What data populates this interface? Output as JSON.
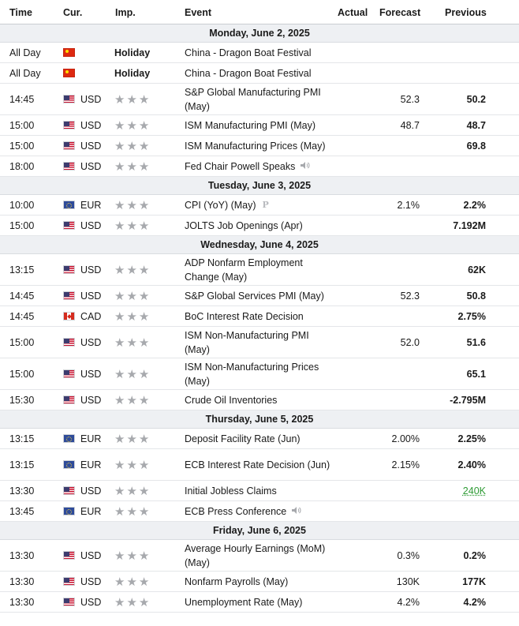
{
  "header": {
    "time": "Time",
    "cur": "Cur.",
    "imp": "Imp.",
    "event": "Event",
    "actual": "Actual",
    "forecast": "Forecast",
    "previous": "Previous"
  },
  "colors": {
    "better": "#2f9b35",
    "star": "#a7a9ad",
    "day_bg": "#eef0f3"
  },
  "icons": {
    "importance": "star-icon",
    "speech": "speaker-icon",
    "preliminary": "preliminary-p-icon"
  },
  "star_glyph": "★★★",
  "days": [
    {
      "label": "Monday, June 2, 2025",
      "events": [
        {
          "time": "All Day",
          "flag": "cn",
          "currency": "",
          "holiday": "Holiday",
          "event": "China - Dragon Boat Festival",
          "forecast": "",
          "previous": ""
        },
        {
          "time": "All Day",
          "flag": "cn",
          "currency": "",
          "holiday": "Holiday",
          "event": "China - Dragon Boat Festival",
          "forecast": "",
          "previous": ""
        },
        {
          "time": "14:45",
          "flag": "us",
          "currency": "USD",
          "event": "S&P Global Manufacturing PMI (May)",
          "forecast": "52.3",
          "previous": "50.2",
          "tall": true
        },
        {
          "time": "15:00",
          "flag": "us",
          "currency": "USD",
          "event": "ISM Manufacturing PMI (May)",
          "forecast": "48.7",
          "previous": "48.7"
        },
        {
          "time": "15:00",
          "flag": "us",
          "currency": "USD",
          "event": "ISM Manufacturing Prices (May)",
          "forecast": "",
          "previous": "69.8"
        },
        {
          "time": "18:00",
          "flag": "us",
          "currency": "USD",
          "event": "Fed Chair Powell Speaks",
          "forecast": "",
          "previous": "",
          "speech": true
        }
      ]
    },
    {
      "label": "Tuesday, June 3, 2025",
      "events": [
        {
          "time": "10:00",
          "flag": "eu",
          "currency": "EUR",
          "event": "CPI (YoY) (May)",
          "forecast": "2.1%",
          "previous": "2.2%",
          "prelim": "P"
        },
        {
          "time": "15:00",
          "flag": "us",
          "currency": "USD",
          "event": "JOLTS Job Openings (Apr)",
          "forecast": "",
          "previous": "7.192M"
        }
      ]
    },
    {
      "label": "Wednesday, June 4, 2025",
      "events": [
        {
          "time": "13:15",
          "flag": "us",
          "currency": "USD",
          "event": "ADP Nonfarm Employment Change (May)",
          "forecast": "",
          "previous": "62K",
          "tall": true
        },
        {
          "time": "14:45",
          "flag": "us",
          "currency": "USD",
          "event": "S&P Global Services PMI (May)",
          "forecast": "52.3",
          "previous": "50.8"
        },
        {
          "time": "14:45",
          "flag": "ca",
          "currency": "CAD",
          "event": "BoC Interest Rate Decision",
          "forecast": "",
          "previous": "2.75%"
        },
        {
          "time": "15:00",
          "flag": "us",
          "currency": "USD",
          "event": "ISM Non-Manufacturing PMI (May)",
          "forecast": "52.0",
          "previous": "51.6",
          "tall": true
        },
        {
          "time": "15:00",
          "flag": "us",
          "currency": "USD",
          "event": "ISM Non-Manufacturing Prices (May)",
          "forecast": "",
          "previous": "65.1",
          "tall": true
        },
        {
          "time": "15:30",
          "flag": "us",
          "currency": "USD",
          "event": "Crude Oil Inventories",
          "forecast": "",
          "previous": "-2.795M"
        }
      ]
    },
    {
      "label": "Thursday, June 5, 2025",
      "events": [
        {
          "time": "13:15",
          "flag": "eu",
          "currency": "EUR",
          "event": "Deposit Facility Rate (Jun)",
          "forecast": "2.00%",
          "previous": "2.25%"
        },
        {
          "time": "13:15",
          "flag": "eu",
          "currency": "EUR",
          "event": "ECB Interest Rate Decision (Jun)",
          "forecast": "2.15%",
          "previous": "2.40%",
          "tall": true
        },
        {
          "time": "13:30",
          "flag": "us",
          "currency": "USD",
          "event": "Initial Jobless Claims",
          "forecast": "",
          "previous": "240K",
          "previous_better": true
        },
        {
          "time": "13:45",
          "flag": "eu",
          "currency": "EUR",
          "event": "ECB Press Conference",
          "forecast": "",
          "previous": "",
          "speech": true
        }
      ]
    },
    {
      "label": "Friday, June 6, 2025",
      "events": [
        {
          "time": "13:30",
          "flag": "us",
          "currency": "USD",
          "event": "Average Hourly Earnings (MoM) (May)",
          "forecast": "0.3%",
          "previous": "0.2%",
          "tall": true
        },
        {
          "time": "13:30",
          "flag": "us",
          "currency": "USD",
          "event": "Nonfarm Payrolls (May)",
          "forecast": "130K",
          "previous": "177K"
        },
        {
          "time": "13:30",
          "flag": "us",
          "currency": "USD",
          "event": "Unemployment Rate (May)",
          "forecast": "4.2%",
          "previous": "4.2%"
        }
      ]
    }
  ]
}
